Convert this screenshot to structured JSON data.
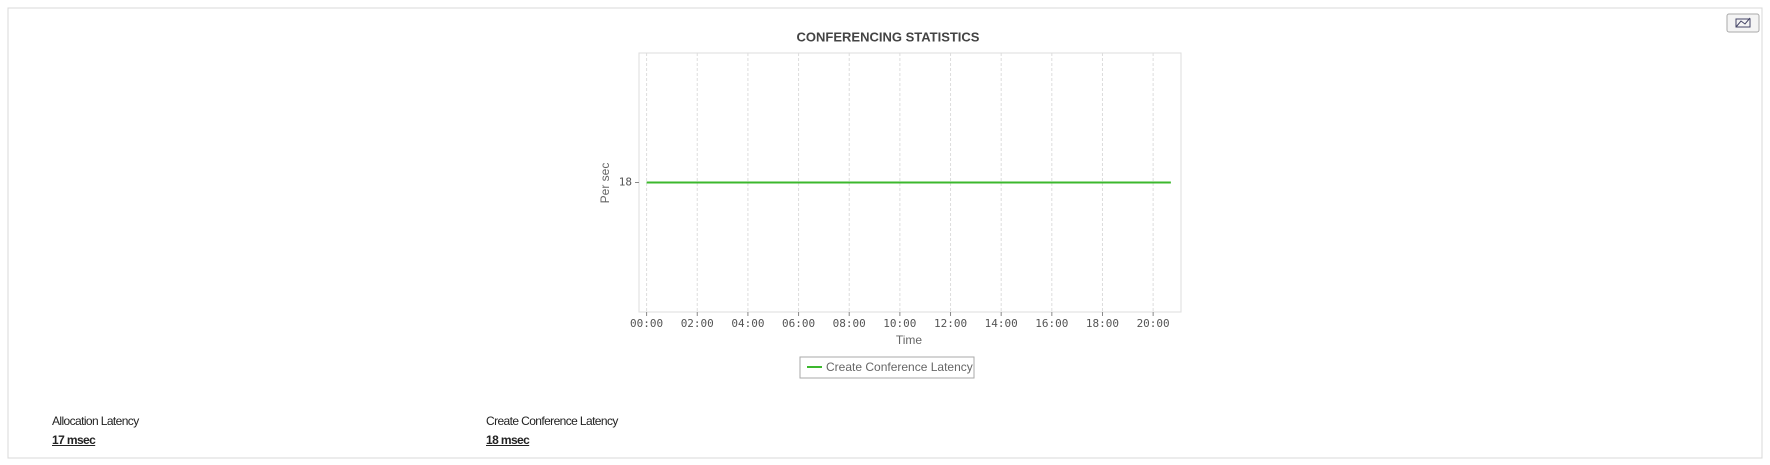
{
  "chart_data": {
    "type": "line",
    "title": "CONFERENCING  STATISTICS",
    "x_label": "Time",
    "y_label": "Per sec",
    "x": [
      0,
      20.7
    ],
    "series": [
      {
        "name": "Create Conference Latency",
        "color": "#3cb82e",
        "values": [
          18,
          18
        ]
      }
    ],
    "xlim": [
      -0.3,
      21.1
    ],
    "xticks": [
      {
        "value": 0,
        "label": "00:00"
      },
      {
        "value": 2,
        "label": "02:00"
      },
      {
        "value": 4,
        "label": "04:00"
      },
      {
        "value": 6,
        "label": "06:00"
      },
      {
        "value": 8,
        "label": "08:00"
      },
      {
        "value": 10,
        "label": "10:00"
      },
      {
        "value": 12,
        "label": "12:00"
      },
      {
        "value": 14,
        "label": "14:00"
      },
      {
        "value": 16,
        "label": "16:00"
      },
      {
        "value": 18,
        "label": "18:00"
      },
      {
        "value": 20,
        "label": "20:00"
      }
    ],
    "ylim": [
      17,
      19
    ],
    "yticks": [
      18
    ],
    "grid": true
  },
  "stats": [
    {
      "label": "Allocation Latency",
      "value": "17 msec"
    },
    {
      "label": "Create Conference Latency",
      "value": "18 msec"
    }
  ]
}
